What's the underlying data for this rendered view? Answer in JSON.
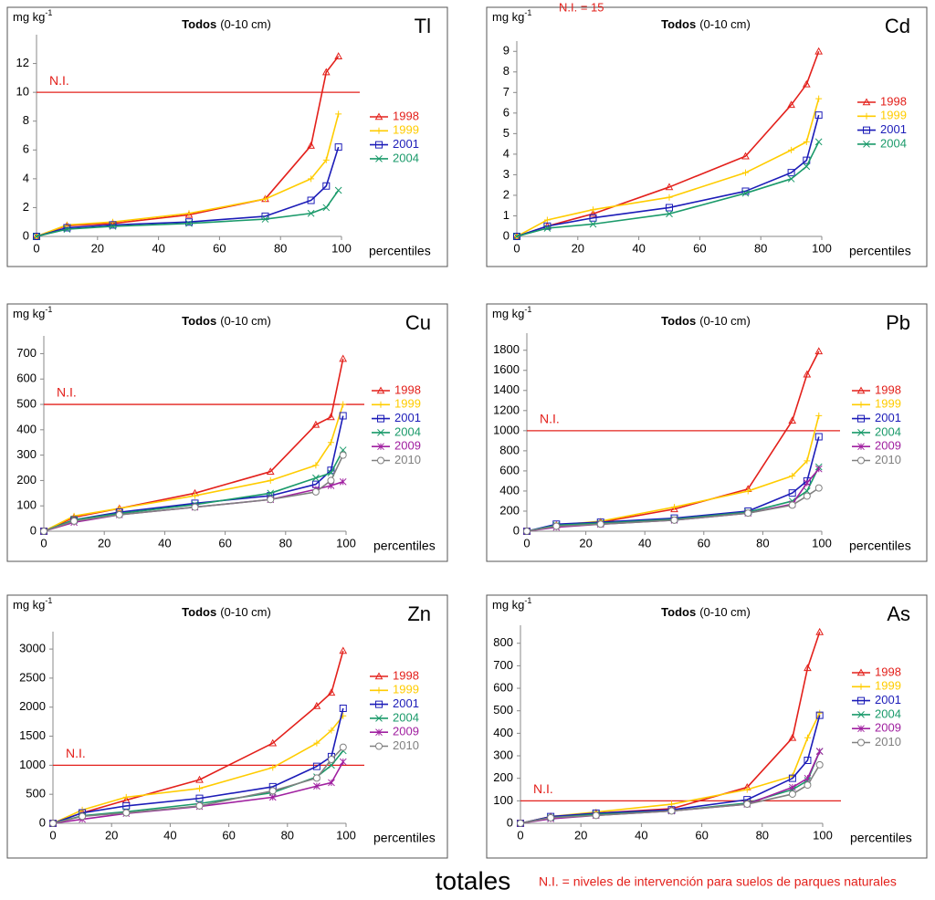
{
  "chart_data": [
    {
      "type": "line",
      "title": "Todos",
      "title_suffix": "(0-10 cm)",
      "element": "Tl",
      "y_label": "mg kg",
      "y_label_sup": "-1",
      "x_label": "percentiles",
      "x": [
        0,
        10,
        25,
        50,
        75,
        90,
        95,
        99
      ],
      "xlim": [
        0,
        100
      ],
      "xticks": [
        0,
        20,
        40,
        60,
        80,
        100
      ],
      "ylim": [
        0,
        14
      ],
      "yticks": [
        0,
        2,
        4,
        6,
        8,
        10,
        12
      ],
      "ni": {
        "value": 10,
        "label": "N.I."
      },
      "series": [
        {
          "name": "1998",
          "color": "#e3201b",
          "marker": "triangle",
          "values": [
            0,
            0.75,
            0.9,
            1.5,
            2.6,
            6.3,
            11.4,
            12.5
          ]
        },
        {
          "name": "1999",
          "color": "#ffcc00",
          "marker": "plus",
          "values": [
            0,
            0.8,
            1.0,
            1.6,
            2.6,
            4.0,
            5.3,
            8.5
          ]
        },
        {
          "name": "2001",
          "color": "#1c1cb8",
          "marker": "square",
          "values": [
            0,
            0.6,
            0.8,
            1.0,
            1.4,
            2.5,
            3.5,
            6.2
          ]
        },
        {
          "name": "2004",
          "color": "#1a9a6a",
          "marker": "x",
          "values": [
            0,
            0.5,
            0.7,
            0.9,
            1.2,
            1.6,
            2.0,
            3.2
          ]
        }
      ]
    },
    {
      "type": "line",
      "title": "Todos",
      "title_suffix": "(0-10 cm)",
      "element": "Cd",
      "y_label": "mg kg",
      "y_label_sup": "-1",
      "x_label": "percentiles",
      "annotation": "N.I. = 15",
      "x": [
        0,
        10,
        25,
        50,
        75,
        90,
        95,
        99
      ],
      "xlim": [
        0,
        100
      ],
      "xticks": [
        0,
        20,
        40,
        60,
        80,
        100
      ],
      "ylim": [
        0,
        9.5
      ],
      "yticks": [
        0,
        1,
        2,
        3,
        4,
        5,
        6,
        7,
        8,
        9
      ],
      "series": [
        {
          "name": "1998",
          "color": "#e3201b",
          "marker": "triangle",
          "values": [
            0,
            0.5,
            1.1,
            2.4,
            3.9,
            6.4,
            7.4,
            9.0
          ]
        },
        {
          "name": "1999",
          "color": "#ffcc00",
          "marker": "plus",
          "values": [
            0,
            0.8,
            1.3,
            1.9,
            3.1,
            4.2,
            4.6,
            6.7
          ]
        },
        {
          "name": "2001",
          "color": "#1c1cb8",
          "marker": "square",
          "values": [
            0,
            0.5,
            0.9,
            1.4,
            2.2,
            3.1,
            3.7,
            5.9
          ]
        },
        {
          "name": "2004",
          "color": "#1a9a6a",
          "marker": "x",
          "values": [
            0,
            0.4,
            0.6,
            1.1,
            2.1,
            2.8,
            3.4,
            4.6
          ]
        }
      ]
    },
    {
      "type": "line",
      "title": "Todos",
      "title_suffix": "(0-10 cm)",
      "element": "Cu",
      "y_label": "mg kg",
      "y_label_sup": "-1",
      "x_label": "percentiles",
      "x": [
        0,
        10,
        25,
        50,
        75,
        90,
        95,
        99
      ],
      "xlim": [
        0,
        100
      ],
      "xticks": [
        0,
        20,
        40,
        60,
        80,
        100
      ],
      "ylim": [
        0,
        770
      ],
      "yticks": [
        0,
        100,
        200,
        300,
        400,
        500,
        600,
        700
      ],
      "ni": {
        "value": 500,
        "label": "N.I."
      },
      "series": [
        {
          "name": "1998",
          "color": "#e3201b",
          "marker": "triangle",
          "values": [
            0,
            55,
            90,
            150,
            235,
            420,
            450,
            680
          ]
        },
        {
          "name": "1999",
          "color": "#ffcc00",
          "marker": "plus",
          "values": [
            0,
            60,
            90,
            140,
            200,
            260,
            350,
            500
          ]
        },
        {
          "name": "2001",
          "color": "#1c1cb8",
          "marker": "square",
          "values": [
            0,
            45,
            75,
            110,
            140,
            185,
            240,
            455
          ]
        },
        {
          "name": "2004",
          "color": "#1a9a6a",
          "marker": "x",
          "values": [
            0,
            45,
            70,
            105,
            150,
            210,
            230,
            320
          ]
        },
        {
          "name": "2009",
          "color": "#a020a0",
          "marker": "star",
          "values": [
            0,
            35,
            65,
            95,
            125,
            165,
            180,
            195
          ]
        },
        {
          "name": "2010",
          "color": "#808080",
          "marker": "circle",
          "values": [
            0,
            40,
            65,
            95,
            125,
            155,
            200,
            300
          ]
        }
      ]
    },
    {
      "type": "line",
      "title": "Todos",
      "title_suffix": "(0-10 cm)",
      "element": "Pb",
      "y_label": "mg kg",
      "y_label_sup": "-1",
      "x_label": "percentiles",
      "x": [
        0,
        10,
        25,
        50,
        75,
        90,
        95,
        99
      ],
      "xlim": [
        0,
        100
      ],
      "xticks": [
        0,
        20,
        40,
        60,
        80,
        100
      ],
      "ylim": [
        0,
        1970
      ],
      "yticks": [
        0,
        200,
        400,
        600,
        800,
        1000,
        1200,
        1400,
        1600,
        1800
      ],
      "ni": {
        "value": 1000,
        "label": "N.I."
      },
      "series": [
        {
          "name": "1998",
          "color": "#e3201b",
          "marker": "triangle",
          "values": [
            0,
            60,
            90,
            220,
            420,
            1100,
            1560,
            1790
          ]
        },
        {
          "name": "1999",
          "color": "#ffcc00",
          "marker": "plus",
          "values": [
            0,
            60,
            100,
            240,
            400,
            550,
            700,
            1150
          ]
        },
        {
          "name": "2001",
          "color": "#1c1cb8",
          "marker": "square",
          "values": [
            0,
            70,
            90,
            130,
            200,
            380,
            500,
            940
          ]
        },
        {
          "name": "2004",
          "color": "#1a9a6a",
          "marker": "x",
          "values": [
            0,
            60,
            80,
            120,
            190,
            300,
            400,
            640
          ]
        },
        {
          "name": "2009",
          "color": "#a020a0",
          "marker": "star",
          "values": [
            0,
            40,
            70,
            110,
            180,
            270,
            480,
            620
          ]
        },
        {
          "name": "2010",
          "color": "#808080",
          "marker": "circle",
          "values": [
            0,
            50,
            70,
            110,
            180,
            260,
            350,
            430
          ]
        }
      ]
    },
    {
      "type": "line",
      "title": "Todos",
      "title_suffix": "(0-10 cm)",
      "element": "Zn",
      "y_label": "mg kg",
      "y_label_sup": "-1",
      "x_label": "percentiles",
      "x": [
        0,
        10,
        25,
        50,
        75,
        90,
        95,
        99
      ],
      "xlim": [
        0,
        100
      ],
      "xticks": [
        0,
        20,
        40,
        60,
        80,
        100
      ],
      "ylim": [
        0,
        3300
      ],
      "yticks": [
        0,
        500,
        1000,
        1500,
        2000,
        2500,
        3000
      ],
      "ni": {
        "value": 1000,
        "label": "N.I."
      },
      "series": [
        {
          "name": "1998",
          "color": "#e3201b",
          "marker": "triangle",
          "values": [
            0,
            180,
            400,
            750,
            1380,
            2020,
            2250,
            2970
          ]
        },
        {
          "name": "1999",
          "color": "#ffcc00",
          "marker": "plus",
          "values": [
            0,
            230,
            450,
            600,
            960,
            1380,
            1600,
            1850
          ]
        },
        {
          "name": "2001",
          "color": "#1c1cb8",
          "marker": "square",
          "values": [
            0,
            180,
            300,
            430,
            630,
            980,
            1150,
            1980
          ]
        },
        {
          "name": "2004",
          "color": "#1a9a6a",
          "marker": "x",
          "values": [
            0,
            130,
            200,
            340,
            530,
            800,
            1000,
            1250
          ]
        },
        {
          "name": "2009",
          "color": "#a020a0",
          "marker": "star",
          "values": [
            0,
            70,
            170,
            290,
            450,
            640,
            700,
            1060
          ]
        },
        {
          "name": "2010",
          "color": "#808080",
          "marker": "circle",
          "values": [
            0,
            120,
            180,
            300,
            560,
            780,
            1100,
            1310
          ]
        }
      ]
    },
    {
      "type": "line",
      "title": "Todos",
      "title_suffix": "(0-10 cm)",
      "element": "As",
      "y_label": "mg kg",
      "y_label_sup": "-1",
      "x_label": "percentiles",
      "x": [
        0,
        10,
        25,
        50,
        75,
        90,
        95,
        99
      ],
      "xlim": [
        0,
        100
      ],
      "xticks": [
        0,
        20,
        40,
        60,
        80,
        100
      ],
      "ylim": [
        0,
        880
      ],
      "yticks": [
        0,
        100,
        200,
        300,
        400,
        500,
        600,
        700,
        800
      ],
      "ni": {
        "value": 100,
        "label": "N.I."
      },
      "series": [
        {
          "name": "1998",
          "color": "#e3201b",
          "marker": "triangle",
          "values": [
            0,
            30,
            45,
            65,
            160,
            380,
            690,
            850
          ]
        },
        {
          "name": "1999",
          "color": "#ffcc00",
          "marker": "plus",
          "values": [
            0,
            30,
            50,
            85,
            150,
            210,
            380,
            490
          ]
        },
        {
          "name": "2001",
          "color": "#1c1cb8",
          "marker": "square",
          "values": [
            0,
            30,
            45,
            60,
            105,
            200,
            280,
            480
          ]
        },
        {
          "name": "2004",
          "color": "#1a9a6a",
          "marker": "x",
          "values": [
            0,
            25,
            40,
            55,
            90,
            150,
            190,
            320
          ]
        },
        {
          "name": "2009",
          "color": "#a020a0",
          "marker": "star",
          "values": [
            0,
            20,
            35,
            55,
            85,
            160,
            200,
            320
          ]
        },
        {
          "name": "2010",
          "color": "#808080",
          "marker": "circle",
          "values": [
            0,
            25,
            35,
            55,
            85,
            130,
            170,
            260
          ]
        }
      ]
    }
  ],
  "footer": {
    "title": "totales",
    "note": "N.I. = niveles de intervención para suelos de parques naturales"
  }
}
